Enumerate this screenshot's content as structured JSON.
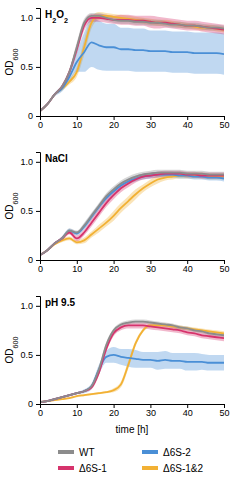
{
  "chart_data": [
    {
      "type": "line",
      "title": "H2O2",
      "y_label": "OD600",
      "x": [
        0,
        2,
        4,
        6,
        8,
        10,
        12,
        14,
        16,
        18,
        20,
        22,
        24,
        26,
        28,
        30,
        32,
        34,
        36,
        38,
        40,
        42,
        44,
        46,
        48,
        50
      ],
      "xlim": [
        0,
        50
      ],
      "xticks": [
        0,
        10,
        20,
        30,
        40,
        50
      ],
      "ylim": [
        0,
        1.1
      ],
      "yticks": [
        0,
        0.5,
        {
          "value": 1,
          "label": "1.0"
        }
      ],
      "series": [
        {
          "name": "WT",
          "color": "#8c8c8c",
          "values": [
            0.05,
            0.12,
            0.22,
            0.3,
            0.45,
            0.7,
            0.95,
            1.02,
            1.02,
            1.0,
            0.98,
            0.97,
            0.97,
            0.96,
            0.96,
            0.95,
            0.95,
            0.94,
            0.93,
            0.93,
            0.92,
            0.92,
            0.91,
            0.9,
            0.9,
            0.89
          ],
          "errors": [
            0.01,
            0.01,
            0.01,
            0.02,
            0.03,
            0.05,
            0.04,
            0.03,
            0.03,
            0.03,
            0.03,
            0.03,
            0.03,
            0.03,
            0.03,
            0.03,
            0.03,
            0.03,
            0.03,
            0.03,
            0.03,
            0.03,
            0.03,
            0.03,
            0.03,
            0.03
          ]
        },
        {
          "name": "Δ6S-1",
          "color": "#d6336c",
          "values": [
            0.05,
            0.12,
            0.22,
            0.3,
            0.45,
            0.68,
            0.92,
            1.0,
            1.0,
            0.99,
            0.98,
            0.98,
            0.98,
            0.97,
            0.97,
            0.96,
            0.95,
            0.95,
            0.94,
            0.93,
            0.92,
            0.92,
            0.91,
            0.9,
            0.89,
            0.88
          ],
          "errors": [
            0.01,
            0.01,
            0.01,
            0.02,
            0.03,
            0.05,
            0.05,
            0.04,
            0.04,
            0.04,
            0.04,
            0.05,
            0.05,
            0.05,
            0.05,
            0.06,
            0.06,
            0.05,
            0.05,
            0.05,
            0.05,
            0.05,
            0.05,
            0.05,
            0.05,
            0.05
          ]
        },
        {
          "name": "Δ6S-2",
          "color": "#4a8fd6",
          "values": [
            0.05,
            0.12,
            0.22,
            0.28,
            0.4,
            0.55,
            0.65,
            0.75,
            0.72,
            0.7,
            0.7,
            0.68,
            0.68,
            0.67,
            0.67,
            0.66,
            0.66,
            0.66,
            0.65,
            0.65,
            0.65,
            0.64,
            0.64,
            0.64,
            0.64,
            0.63
          ],
          "errors": [
            0.01,
            0.01,
            0.02,
            0.03,
            0.05,
            0.1,
            0.2,
            0.25,
            0.25,
            0.24,
            0.24,
            0.22,
            0.22,
            0.22,
            0.22,
            0.21,
            0.21,
            0.21,
            0.21,
            0.21,
            0.21,
            0.21,
            0.21,
            0.21,
            0.21,
            0.21
          ]
        },
        {
          "name": "Δ6S-1&2",
          "color": "#f2b134",
          "values": [
            0.05,
            0.12,
            0.22,
            0.28,
            0.35,
            0.45,
            0.7,
            0.95,
            1.02,
            1.02,
            1.01,
            1.0,
            0.99,
            0.98,
            0.97,
            0.96,
            0.95,
            0.95,
            0.94,
            0.93,
            0.92,
            0.91,
            0.9,
            0.9,
            0.89,
            0.88
          ],
          "errors": [
            0.01,
            0.01,
            0.01,
            0.02,
            0.03,
            0.05,
            0.08,
            0.06,
            0.04,
            0.03,
            0.03,
            0.03,
            0.03,
            0.03,
            0.03,
            0.03,
            0.03,
            0.03,
            0.03,
            0.03,
            0.03,
            0.03,
            0.03,
            0.03,
            0.03,
            0.03
          ]
        }
      ]
    },
    {
      "type": "line",
      "title": "NaCl",
      "y_label": "OD600",
      "x": [
        0,
        2,
        4,
        6,
        8,
        10,
        12,
        14,
        16,
        18,
        20,
        22,
        24,
        26,
        28,
        30,
        32,
        34,
        36,
        38,
        40,
        42,
        44,
        46,
        48,
        50
      ],
      "xlim": [
        0,
        50
      ],
      "xticks": [
        0,
        10,
        20,
        30,
        40,
        50
      ],
      "ylim": [
        0,
        1.1
      ],
      "yticks": [
        0,
        0.5,
        {
          "value": 1,
          "label": "1.0"
        }
      ],
      "series": [
        {
          "name": "WT",
          "color": "#8c8c8c",
          "values": [
            0.05,
            0.1,
            0.17,
            0.22,
            0.3,
            0.28,
            0.35,
            0.45,
            0.55,
            0.65,
            0.72,
            0.78,
            0.82,
            0.85,
            0.87,
            0.88,
            0.89,
            0.89,
            0.89,
            0.89,
            0.88,
            0.88,
            0.88,
            0.87,
            0.87,
            0.87
          ],
          "errors": [
            0.01,
            0.01,
            0.01,
            0.02,
            0.02,
            0.02,
            0.03,
            0.03,
            0.03,
            0.03,
            0.03,
            0.03,
            0.03,
            0.03,
            0.03,
            0.03,
            0.03,
            0.03,
            0.03,
            0.03,
            0.03,
            0.03,
            0.03,
            0.03,
            0.03,
            0.03
          ]
        },
        {
          "name": "Δ6S-1",
          "color": "#d6336c",
          "values": [
            0.05,
            0.1,
            0.17,
            0.22,
            0.28,
            0.22,
            0.28,
            0.38,
            0.48,
            0.58,
            0.66,
            0.73,
            0.78,
            0.82,
            0.85,
            0.86,
            0.87,
            0.88,
            0.88,
            0.88,
            0.87,
            0.87,
            0.86,
            0.86,
            0.86,
            0.86
          ],
          "errors": [
            0.01,
            0.01,
            0.01,
            0.02,
            0.02,
            0.03,
            0.03,
            0.04,
            0.04,
            0.04,
            0.04,
            0.04,
            0.04,
            0.03,
            0.03,
            0.03,
            0.03,
            0.03,
            0.03,
            0.03,
            0.03,
            0.03,
            0.03,
            0.03,
            0.03,
            0.03
          ]
        },
        {
          "name": "Δ6S-2",
          "color": "#4a8fd6",
          "values": [
            0.05,
            0.1,
            0.17,
            0.22,
            0.3,
            0.27,
            0.34,
            0.44,
            0.54,
            0.63,
            0.7,
            0.76,
            0.8,
            0.83,
            0.85,
            0.86,
            0.87,
            0.87,
            0.87,
            0.86,
            0.86,
            0.85,
            0.85,
            0.84,
            0.84,
            0.83
          ],
          "errors": [
            0.01,
            0.01,
            0.01,
            0.02,
            0.02,
            0.02,
            0.03,
            0.03,
            0.03,
            0.03,
            0.03,
            0.03,
            0.03,
            0.03,
            0.03,
            0.03,
            0.03,
            0.03,
            0.03,
            0.03,
            0.03,
            0.03,
            0.03,
            0.03,
            0.03,
            0.03
          ]
        },
        {
          "name": "Δ6S-1&2",
          "color": "#f2b134",
          "values": [
            0.05,
            0.1,
            0.16,
            0.2,
            0.22,
            0.18,
            0.2,
            0.26,
            0.32,
            0.38,
            0.45,
            0.53,
            0.6,
            0.67,
            0.73,
            0.78,
            0.82,
            0.84,
            0.85,
            0.86,
            0.86,
            0.86,
            0.86,
            0.85,
            0.85,
            0.85
          ],
          "errors": [
            0.01,
            0.01,
            0.01,
            0.02,
            0.02,
            0.02,
            0.03,
            0.03,
            0.04,
            0.04,
            0.05,
            0.05,
            0.05,
            0.05,
            0.04,
            0.04,
            0.04,
            0.03,
            0.03,
            0.03,
            0.03,
            0.03,
            0.03,
            0.03,
            0.03,
            0.03
          ]
        }
      ]
    },
    {
      "type": "line",
      "title": "pH 9.5",
      "y_label": "OD600",
      "x_label": "time [h]",
      "legend": "bottom",
      "x": [
        0,
        2,
        4,
        6,
        8,
        10,
        12,
        14,
        16,
        18,
        20,
        22,
        24,
        26,
        28,
        30,
        32,
        34,
        36,
        38,
        40,
        42,
        44,
        46,
        48,
        50
      ],
      "xlim": [
        0,
        50
      ],
      "xticks": [
        0,
        10,
        20,
        30,
        40,
        50
      ],
      "ylim": [
        0,
        1.1
      ],
      "yticks": [
        0,
        0.5,
        {
          "value": 1,
          "label": "1.0"
        }
      ],
      "series": [
        {
          "name": "WT",
          "color": "#8c8c8c",
          "values": [
            0.02,
            0.03,
            0.05,
            0.07,
            0.09,
            0.11,
            0.13,
            0.18,
            0.35,
            0.6,
            0.75,
            0.81,
            0.83,
            0.84,
            0.84,
            0.83,
            0.82,
            0.81,
            0.8,
            0.78,
            0.77,
            0.75,
            0.74,
            0.72,
            0.71,
            0.7
          ],
          "errors": [
            0.01,
            0.01,
            0.01,
            0.01,
            0.01,
            0.01,
            0.01,
            0.02,
            0.03,
            0.03,
            0.02,
            0.02,
            0.02,
            0.02,
            0.02,
            0.02,
            0.02,
            0.02,
            0.02,
            0.02,
            0.02,
            0.02,
            0.02,
            0.02,
            0.02,
            0.02
          ]
        },
        {
          "name": "Δ6S-1",
          "color": "#d6336c",
          "values": [
            0.02,
            0.03,
            0.05,
            0.07,
            0.09,
            0.11,
            0.13,
            0.17,
            0.32,
            0.56,
            0.72,
            0.78,
            0.8,
            0.8,
            0.8,
            0.79,
            0.78,
            0.77,
            0.76,
            0.75,
            0.73,
            0.72,
            0.7,
            0.69,
            0.68,
            0.67
          ],
          "errors": [
            0.01,
            0.01,
            0.01,
            0.01,
            0.01,
            0.01,
            0.01,
            0.02,
            0.03,
            0.03,
            0.03,
            0.03,
            0.03,
            0.03,
            0.03,
            0.03,
            0.03,
            0.03,
            0.03,
            0.03,
            0.03,
            0.03,
            0.03,
            0.03,
            0.03,
            0.03
          ]
        },
        {
          "name": "Δ6S-2",
          "color": "#4a8fd6",
          "values": [
            0.02,
            0.03,
            0.05,
            0.07,
            0.09,
            0.11,
            0.13,
            0.18,
            0.35,
            0.48,
            0.5,
            0.48,
            0.47,
            0.46,
            0.45,
            0.45,
            0.44,
            0.45,
            0.44,
            0.44,
            0.43,
            0.43,
            0.43,
            0.42,
            0.42,
            0.42
          ],
          "errors": [
            0.01,
            0.01,
            0.01,
            0.01,
            0.01,
            0.01,
            0.02,
            0.03,
            0.05,
            0.06,
            0.08,
            0.08,
            0.09,
            0.09,
            0.08,
            0.08,
            0.09,
            0.09,
            0.08,
            0.08,
            0.09,
            0.09,
            0.08,
            0.08,
            0.08,
            0.08
          ]
        },
        {
          "name": "Δ6S-1&2",
          "color": "#f2b134",
          "values": [
            0.02,
            0.03,
            0.04,
            0.05,
            0.06,
            0.08,
            0.09,
            0.1,
            0.11,
            0.12,
            0.14,
            0.2,
            0.4,
            0.62,
            0.75,
            0.8,
            0.8,
            0.8,
            0.79,
            0.78,
            0.77,
            0.76,
            0.75,
            0.74,
            0.73,
            0.72
          ],
          "errors": [
            0.01,
            0.01,
            0.01,
            0.01,
            0.01,
            0.01,
            0.01,
            0.01,
            0.01,
            0.01,
            0.02,
            0.03,
            0.04,
            0.03,
            0.02,
            0.02,
            0.02,
            0.02,
            0.02,
            0.02,
            0.02,
            0.02,
            0.02,
            0.02,
            0.02,
            0.02
          ]
        }
      ]
    }
  ]
}
